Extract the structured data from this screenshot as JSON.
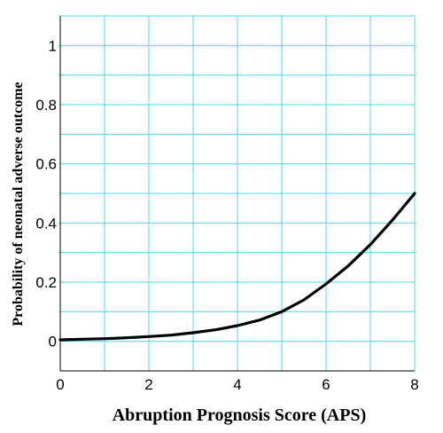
{
  "chart_data": {
    "type": "line",
    "title": "",
    "xlabel": "Abruption Prognosis Score (APS)",
    "ylabel": "Probability of neonatal adverse outcome",
    "xlim": [
      0,
      8
    ],
    "ylim": [
      -0.1,
      1.1
    ],
    "x_ticks": [
      0,
      2,
      4,
      6,
      8
    ],
    "x_tick_labels": [
      "0",
      "2",
      "4",
      "6",
      "8"
    ],
    "y_ticks": [
      0,
      0.2,
      0.4,
      0.6,
      0.8,
      1
    ],
    "y_tick_labels": [
      "0",
      "0.2",
      "0.4",
      "0.6",
      "0.8",
      "1"
    ],
    "x_grid": [
      0,
      1,
      2,
      3,
      4,
      5,
      6,
      7,
      8
    ],
    "y_grid": [
      -0.1,
      0,
      0.1,
      0.2,
      0.3,
      0.4,
      0.5,
      0.6,
      0.7,
      0.8,
      0.9,
      1,
      1.1
    ],
    "grid": true,
    "grid_color": "#4fd8e8",
    "line_color": "#000000",
    "series": [
      {
        "x": [
          0,
          0.5,
          1,
          1.5,
          2,
          2.5,
          3,
          3.5,
          4,
          4.5,
          5,
          5.5,
          6,
          6.5,
          7,
          7.5,
          8
        ],
        "values": [
          0.005,
          0.007,
          0.009,
          0.012,
          0.016,
          0.021,
          0.029,
          0.039,
          0.053,
          0.072,
          0.1,
          0.14,
          0.194,
          0.255,
          0.327,
          0.41,
          0.5
        ]
      }
    ]
  }
}
